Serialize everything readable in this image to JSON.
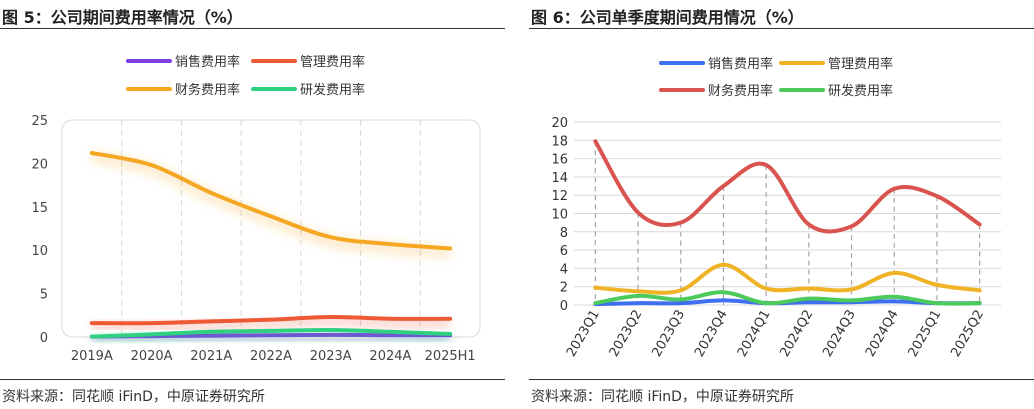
{
  "left": {
    "title": "图 5：公司期间费用率情况（%）",
    "source": "资料来源：同花顺 iFinD，中原证券研究所"
  },
  "right": {
    "title": "图 6：公司单季度期间费用情况（%）",
    "source": "资料来源：同花顺 iFinD，中原证券研究所"
  },
  "chart_data": [
    {
      "type": "line",
      "categories": [
        "2019A",
        "2020A",
        "2021A",
        "2022A",
        "2023A",
        "2024A",
        "2025H1"
      ],
      "ylim": [
        0,
        25
      ],
      "yticks": [
        "0",
        "5",
        "10",
        "15",
        "20",
        "25"
      ],
      "grid": "vertical dashed",
      "legend_position": "top",
      "series": [
        {
          "name": "销售费用率",
          "color": "#7b3fe4",
          "values": [
            0.05,
            0.1,
            0.15,
            0.2,
            0.25,
            0.2,
            0.2
          ]
        },
        {
          "name": "管理费用率",
          "color": "#ee5a36",
          "values": [
            1.6,
            1.6,
            1.8,
            2.0,
            2.3,
            2.1,
            2.1
          ]
        },
        {
          "name": "财务费用率",
          "color": "#f5a623",
          "values": [
            21.2,
            19.8,
            16.6,
            13.9,
            11.5,
            10.7,
            10.2
          ]
        },
        {
          "name": "研发费用率",
          "color": "#2fd07f",
          "values": [
            0.05,
            0.3,
            0.6,
            0.7,
            0.8,
            0.6,
            0.35
          ]
        }
      ]
    },
    {
      "type": "line",
      "categories": [
        "2023Q1",
        "2023Q2",
        "2023Q3",
        "2023Q4",
        "2024Q1",
        "2024Q2",
        "2024Q3",
        "2024Q4",
        "2025Q1",
        "2025Q2"
      ],
      "ylim": [
        0,
        20
      ],
      "yticks": [
        "0",
        "2",
        "4",
        "6",
        "8",
        "10",
        "12",
        "14",
        "16",
        "18",
        "20"
      ],
      "grid": "horizontal solid, vertical dashed drop lines",
      "legend_position": "top",
      "series": [
        {
          "name": "销售费用率",
          "color": "#3d6ff0",
          "values": [
            0.1,
            0.2,
            0.2,
            0.5,
            0.2,
            0.3,
            0.3,
            0.4,
            0.2,
            0.2
          ]
        },
        {
          "name": "管理费用率",
          "color": "#f0b325",
          "values": [
            1.9,
            1.5,
            1.6,
            4.4,
            1.8,
            1.8,
            1.7,
            3.5,
            2.2,
            1.6
          ]
        },
        {
          "name": "财务费用率",
          "color": "#d9534f",
          "values": [
            17.9,
            10.1,
            9.0,
            13.0,
            15.3,
            8.8,
            8.6,
            12.7,
            11.9,
            8.8
          ]
        },
        {
          "name": "研发费用率",
          "color": "#4cca5b",
          "values": [
            0.2,
            1.0,
            0.6,
            1.4,
            0.2,
            0.7,
            0.5,
            0.9,
            0.2,
            0.2
          ]
        }
      ]
    }
  ]
}
